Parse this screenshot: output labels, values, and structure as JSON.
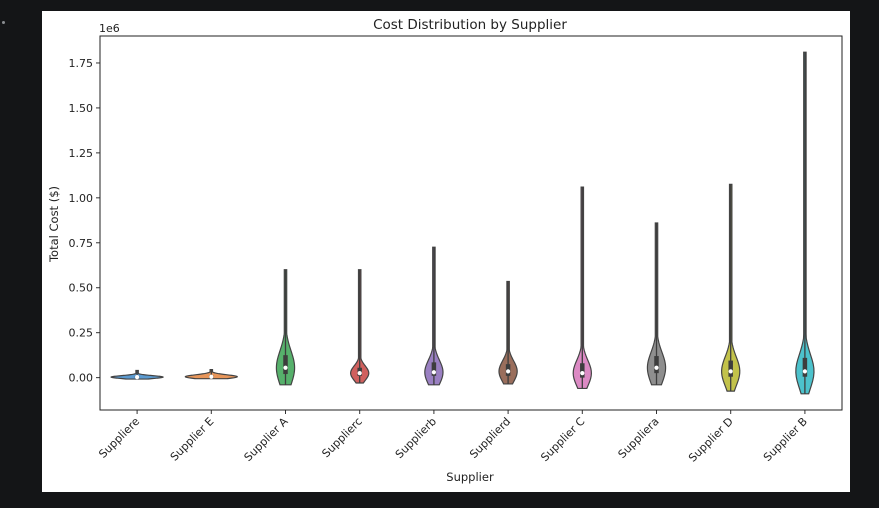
{
  "chart_data": {
    "type": "violin",
    "title": "Cost Distribution by Supplier",
    "xlabel": "Supplier",
    "ylabel": "Total Cost ($)",
    "y_offset_label": "1e6",
    "ylim": [
      -180000,
      1900000
    ],
    "yticks": [
      0,
      250000,
      500000,
      750000,
      1000000,
      1250000,
      1500000,
      1750000
    ],
    "ytick_labels": [
      "0.00",
      "0.25",
      "0.50",
      "0.75",
      "1.00",
      "1.25",
      "1.50",
      "1.75"
    ],
    "grid": false,
    "categories": [
      "Suppliere",
      "Supplier E",
      "Supplier A",
      "Supplierc",
      "Supplierb",
      "Supplierd",
      "Supplier C",
      "Suppliera",
      "Supplier D",
      "Supplier B"
    ],
    "violins": [
      {
        "min": -8000,
        "max": 40000,
        "median": 3000,
        "q1": -1000,
        "q3": 8000,
        "color": "#5b9ad0"
      },
      {
        "min": -6000,
        "max": 45000,
        "median": 5000,
        "q1": 0,
        "q3": 12000,
        "color": "#e8965a"
      },
      {
        "min": -40000,
        "max": 600000,
        "median": 55000,
        "q1": 20000,
        "q3": 125000,
        "color": "#56b06b"
      },
      {
        "min": -30000,
        "max": 600000,
        "median": 25000,
        "q1": 10000,
        "q3": 55000,
        "color": "#d0605e"
      },
      {
        "min": -40000,
        "max": 725000,
        "median": 30000,
        "q1": 10000,
        "q3": 85000,
        "color": "#9a80c2"
      },
      {
        "min": -35000,
        "max": 535000,
        "median": 35000,
        "q1": 10000,
        "q3": 75000,
        "color": "#9a6e5c"
      },
      {
        "min": -60000,
        "max": 1060000,
        "median": 25000,
        "q1": 0,
        "q3": 80000,
        "color": "#dc8ac4"
      },
      {
        "min": -40000,
        "max": 860000,
        "median": 55000,
        "q1": 25000,
        "q3": 120000,
        "color": "#8e8e8e"
      },
      {
        "min": -75000,
        "max": 1075000,
        "median": 35000,
        "q1": 5000,
        "q3": 95000,
        "color": "#c2c24a"
      },
      {
        "min": -90000,
        "max": 1810000,
        "median": 35000,
        "q1": 5000,
        "q3": 110000,
        "color": "#4cc2cc"
      }
    ]
  }
}
